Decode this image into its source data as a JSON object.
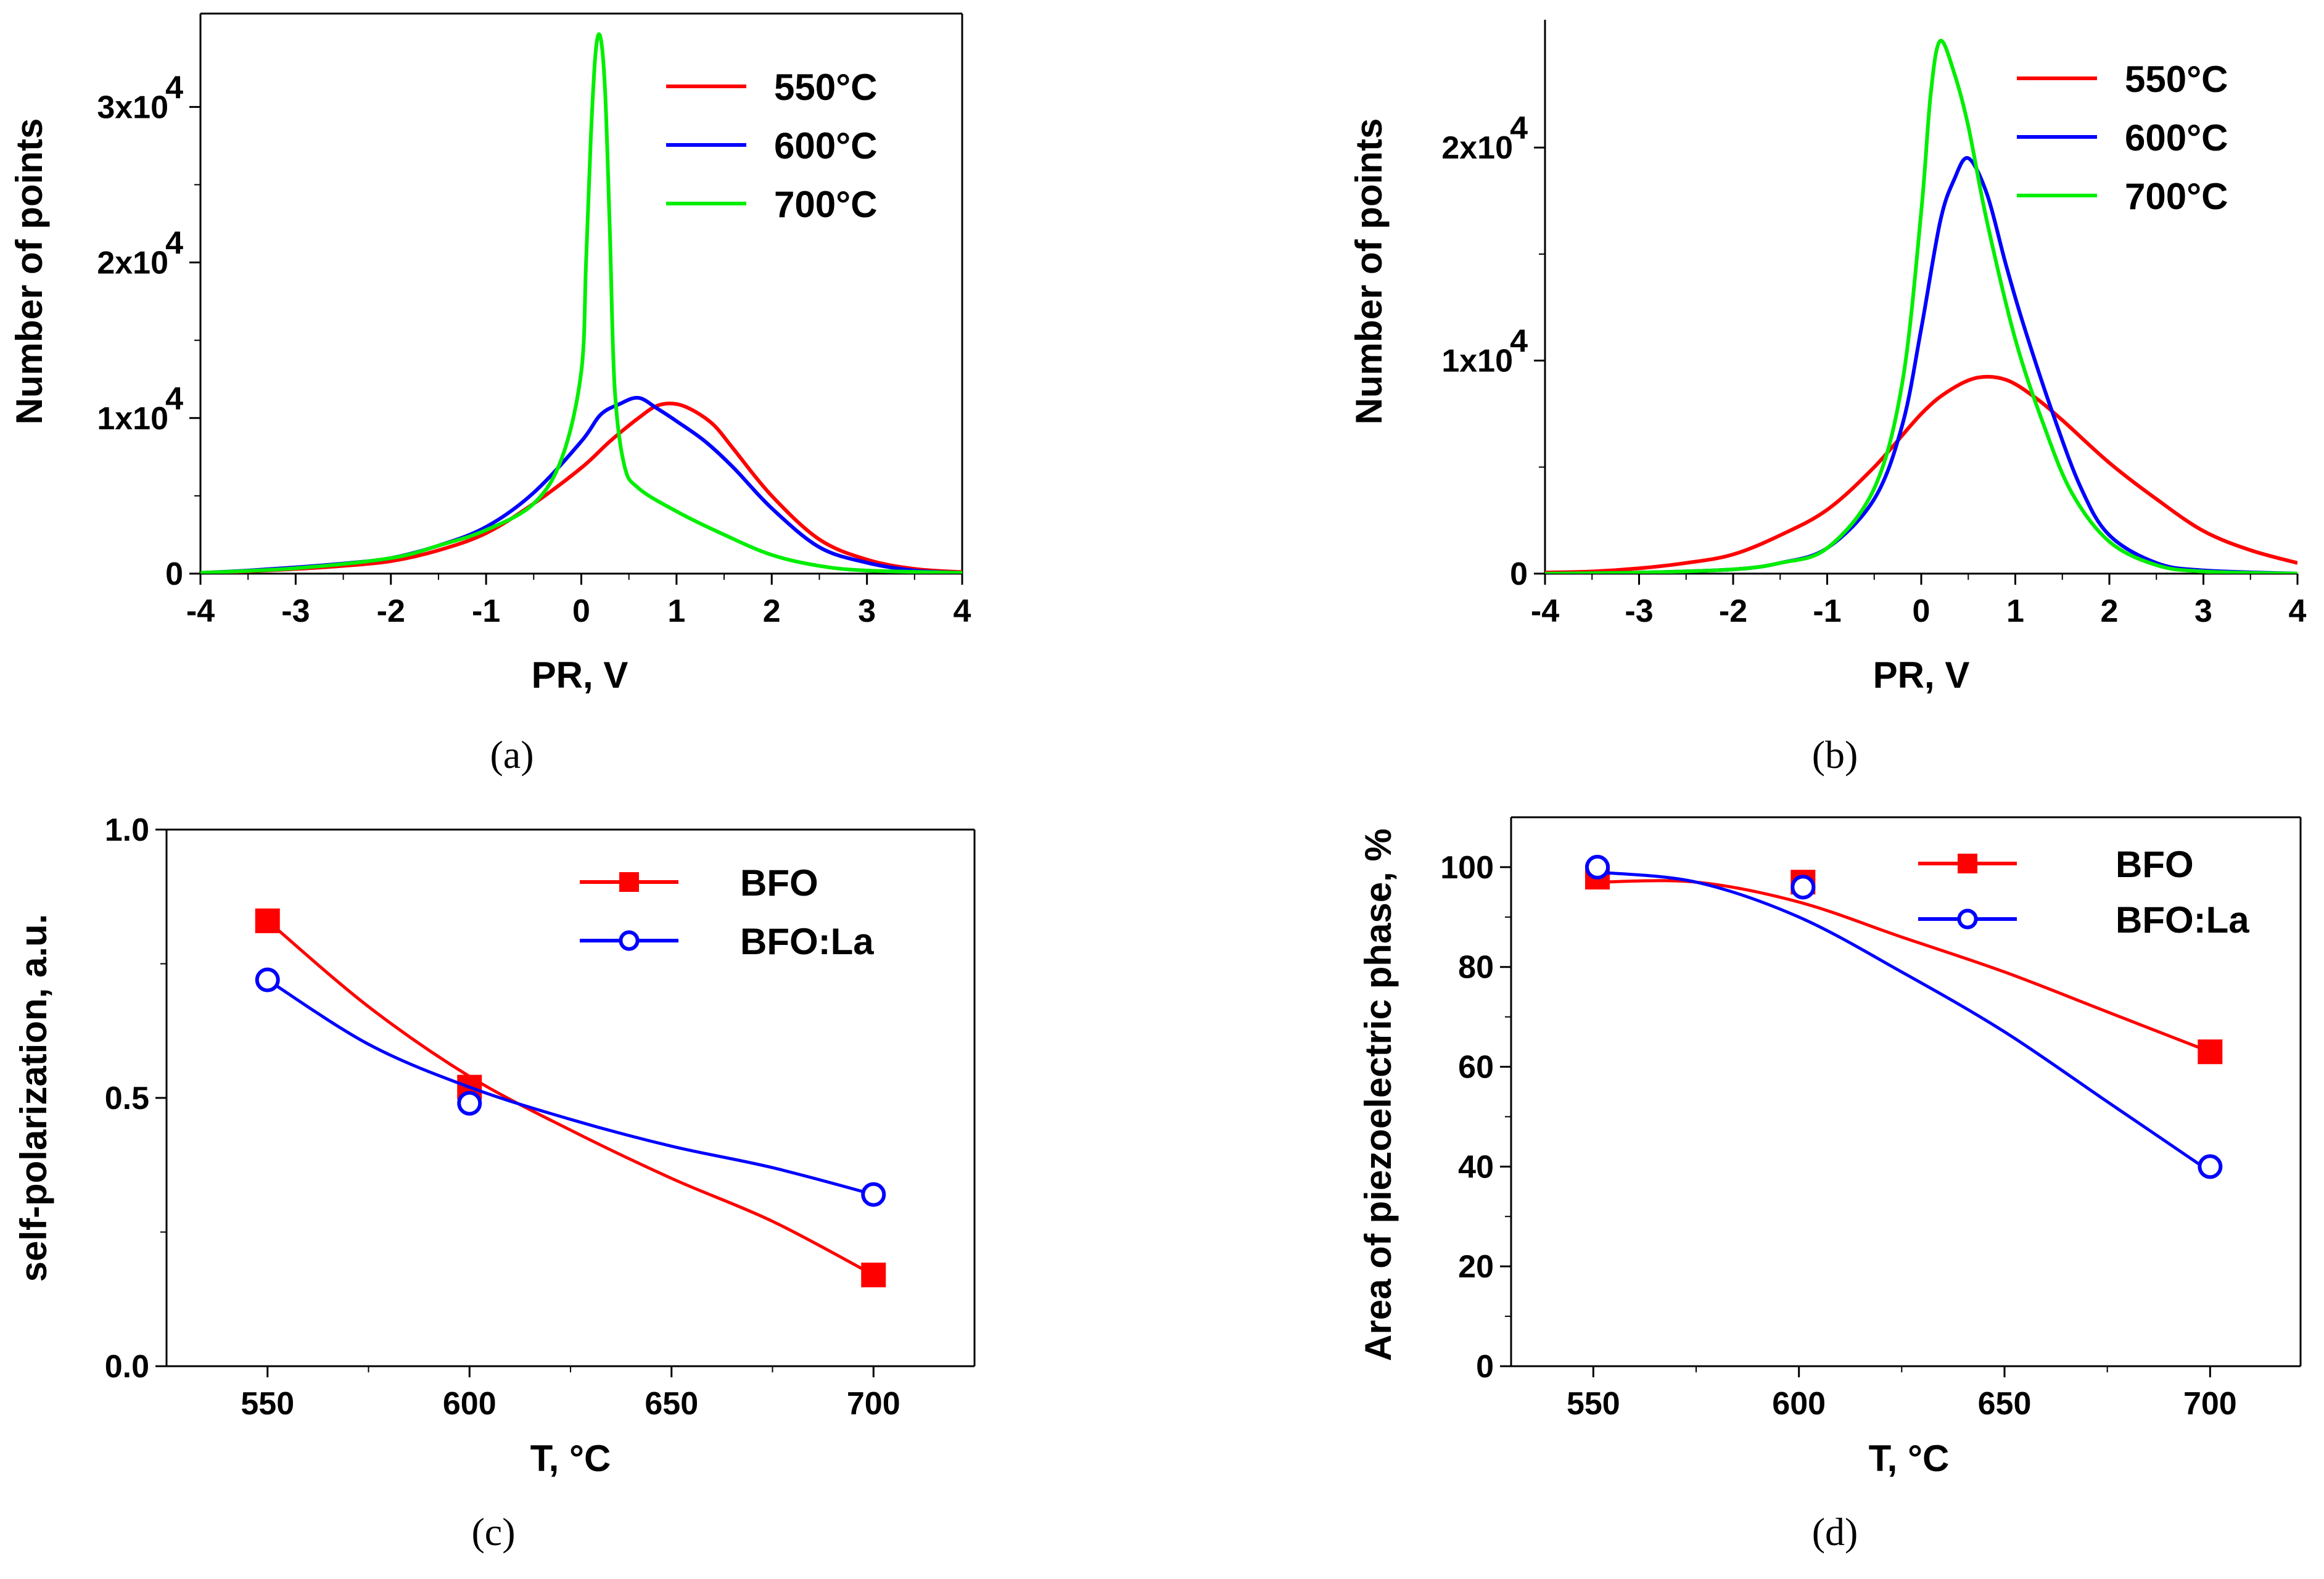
{
  "chart_data": [
    {
      "panel": "a",
      "type": "line",
      "caption": "(a)",
      "xlabel": "PR, V",
      "ylabel": "Number of points",
      "xlim": [
        -4,
        4
      ],
      "ylim": [
        0,
        36000
      ],
      "xticks": [
        -4,
        -3,
        -2,
        -1,
        0,
        1,
        2,
        3,
        4
      ],
      "xtick_labels": [
        "-4",
        "-3",
        "-2",
        "-1",
        "0",
        "1",
        "2",
        "3",
        "4"
      ],
      "yticks": [
        0,
        10000,
        20000,
        30000
      ],
      "ytick_labels": [
        "0",
        "1x10",
        "2x10",
        "3x10"
      ],
      "ytick_exponent": "4",
      "legend_position": "top-right",
      "series": [
        {
          "name": "550°C",
          "color": "#ff0000",
          "x": [
            -4,
            -3.5,
            -3,
            -2.5,
            -2,
            -1.5,
            -1,
            -0.5,
            0,
            0.3,
            0.6,
            0.8,
            1.0,
            1.2,
            1.4,
            1.6,
            2.0,
            2.5,
            3,
            3.5,
            4
          ],
          "y": [
            50,
            150,
            300,
            500,
            800,
            1500,
            2600,
            4500,
            6800,
            8500,
            10000,
            10800,
            10900,
            10400,
            9500,
            8000,
            5000,
            2200,
            900,
            300,
            100
          ]
        },
        {
          "name": "600°C",
          "color": "#0000ff",
          "x": [
            -4,
            -3.5,
            -3,
            -2.5,
            -2,
            -1.5,
            -1,
            -0.5,
            0,
            0.2,
            0.4,
            0.6,
            0.8,
            1.0,
            1.3,
            1.6,
            2.0,
            2.5,
            3,
            3.5,
            4
          ],
          "y": [
            50,
            200,
            400,
            650,
            1000,
            1800,
            3000,
            5200,
            8500,
            10200,
            10900,
            11300,
            10600,
            9800,
            8500,
            6800,
            4200,
            1700,
            700,
            200,
            50
          ]
        },
        {
          "name": "700°C",
          "color": "#00ee00",
          "x": [
            -4,
            -3,
            -2,
            -1.5,
            -1,
            -0.5,
            -0.2,
            0,
            0.05,
            0.1,
            0.15,
            0.2,
            0.25,
            0.3,
            0.35,
            0.45,
            0.6,
            1.0,
            1.5,
            2,
            2.5,
            3,
            4
          ],
          "y": [
            50,
            350,
            1000,
            1800,
            2800,
            4500,
            7500,
            13000,
            20000,
            28000,
            33500,
            34500,
            31000,
            22000,
            12000,
            7000,
            5500,
            4000,
            2500,
            1200,
            500,
            200,
            50
          ]
        }
      ]
    },
    {
      "panel": "b",
      "type": "line",
      "caption": "(b)",
      "xlabel": "PR, V",
      "ylabel": "Number of points",
      "xlim": [
        -4,
        4
      ],
      "ylim": [
        0,
        26000
      ],
      "xticks": [
        -4,
        -3,
        -2,
        -1,
        0,
        1,
        2,
        3,
        4
      ],
      "xtick_labels": [
        "-4",
        "-3",
        "-2",
        "-1",
        "0",
        "1",
        "2",
        "3",
        "4"
      ],
      "yticks": [
        0,
        10000,
        20000
      ],
      "ytick_labels": [
        "0",
        "1x10",
        "2x10"
      ],
      "ytick_exponent": "4",
      "legend_position": "top-right",
      "series": [
        {
          "name": "550°C",
          "color": "#ff0000",
          "x": [
            -4,
            -3.5,
            -3,
            -2.5,
            -2,
            -1.5,
            -1,
            -0.5,
            0,
            0.3,
            0.6,
            0.9,
            1.2,
            1.5,
            2.0,
            2.5,
            3,
            3.5,
            4
          ],
          "y": [
            50,
            100,
            250,
            500,
            900,
            1800,
            3000,
            5000,
            7500,
            8600,
            9200,
            9100,
            8300,
            7200,
            5200,
            3500,
            2000,
            1100,
            500
          ]
        },
        {
          "name": "600°C",
          "color": "#0000ff",
          "x": [
            -4,
            -3,
            -2,
            -1.5,
            -1,
            -0.5,
            -0.2,
            0,
            0.2,
            0.35,
            0.5,
            0.7,
            0.9,
            1.1,
            1.4,
            1.7,
            2.0,
            2.5,
            3,
            4
          ],
          "y": [
            0,
            50,
            200,
            500,
            1200,
            3500,
            7000,
            11500,
            16500,
            18500,
            19500,
            17800,
            14500,
            11500,
            7500,
            4000,
            1800,
            500,
            150,
            0
          ]
        },
        {
          "name": "700°C",
          "color": "#00ee00",
          "x": [
            -4,
            -3,
            -2,
            -1.5,
            -1,
            -0.5,
            -0.2,
            0,
            0.1,
            0.2,
            0.35,
            0.5,
            0.7,
            1.0,
            1.3,
            1.6,
            2.0,
            2.5,
            3,
            4
          ],
          "y": [
            0,
            50,
            200,
            500,
            1200,
            4000,
            9000,
            17000,
            22500,
            25000,
            23500,
            21000,
            16500,
            11000,
            7000,
            3800,
            1500,
            400,
            100,
            0
          ]
        }
      ]
    },
    {
      "panel": "c",
      "type": "scatter",
      "caption": "(c)",
      "xlabel": "T, °C",
      "ylabel": "self-polarization, a.u.",
      "xlim": [
        525,
        725
      ],
      "ylim": [
        0.0,
        1.0
      ],
      "xticks": [
        550,
        600,
        650,
        700
      ],
      "xtick_labels": [
        "550",
        "600",
        "650",
        "700"
      ],
      "yticks": [
        0.0,
        0.5,
        1.0
      ],
      "ytick_labels": [
        "0.0",
        "0.5",
        "1.0"
      ],
      "legend_position": "top-right",
      "series": [
        {
          "name": "BFO",
          "color": "#ff0000",
          "marker": "filled-square",
          "x": [
            550,
            600,
            700
          ],
          "y": [
            0.83,
            0.52,
            0.17
          ],
          "fit_x": [
            550,
            575,
            600,
            625,
            650,
            675,
            700
          ],
          "fit_y": [
            0.83,
            0.67,
            0.54,
            0.44,
            0.35,
            0.27,
            0.17
          ]
        },
        {
          "name": "BFO:La",
          "color": "#0000ff",
          "marker": "open-circle",
          "x": [
            550,
            600,
            700
          ],
          "y": [
            0.72,
            0.49,
            0.32
          ],
          "fit_x": [
            550,
            575,
            600,
            625,
            650,
            675,
            700
          ],
          "fit_y": [
            0.72,
            0.6,
            0.52,
            0.46,
            0.41,
            0.37,
            0.32
          ]
        }
      ]
    },
    {
      "panel": "d",
      "type": "scatter",
      "caption": "(d)",
      "xlabel": "T, °C",
      "ylabel": "Area of piezoelectric phase, %",
      "xlim": [
        530,
        722
      ],
      "ylim": [
        0,
        110
      ],
      "xticks": [
        550,
        600,
        650,
        700
      ],
      "xtick_labels": [
        "550",
        "600",
        "650",
        "700"
      ],
      "yticks": [
        0,
        20,
        40,
        60,
        80,
        100
      ],
      "ytick_labels": [
        "0",
        "20",
        "40",
        "60",
        "80",
        "100"
      ],
      "legend_position": "top-right",
      "series": [
        {
          "name": "BFO",
          "color": "#ff0000",
          "marker": "filled-square",
          "x": [
            551,
            601,
            700
          ],
          "y": [
            98,
            97,
            63
          ],
          "fit_x": [
            551,
            575,
            600,
            625,
            650,
            675,
            700
          ],
          "fit_y": [
            97,
            97,
            93,
            86,
            79,
            71,
            63
          ]
        },
        {
          "name": "BFO:La",
          "color": "#0000ff",
          "marker": "open-circle",
          "x": [
            551,
            601,
            700
          ],
          "y": [
            100,
            96,
            40
          ],
          "fit_x": [
            551,
            575,
            600,
            625,
            650,
            675,
            700
          ],
          "fit_y": [
            99,
            97,
            90,
            79,
            67,
            53,
            39
          ]
        }
      ]
    }
  ]
}
